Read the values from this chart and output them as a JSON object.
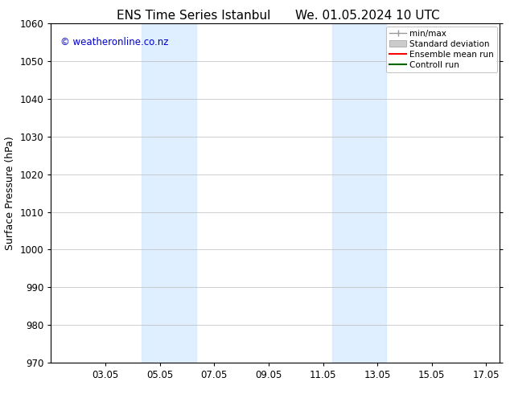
{
  "title_left": "ENS Time Series Istanbul",
  "title_right": "We. 01.05.2024 10 UTC",
  "ylabel": "Surface Pressure (hPa)",
  "ylim": [
    970,
    1060
  ],
  "yticks": [
    970,
    980,
    990,
    1000,
    1010,
    1020,
    1030,
    1040,
    1050,
    1060
  ],
  "xlim": [
    0,
    16.5
  ],
  "xtick_labels": [
    "03.05",
    "05.05",
    "07.05",
    "09.05",
    "11.05",
    "13.05",
    "15.05",
    "17.05"
  ],
  "xtick_positions": [
    2,
    4,
    6,
    8,
    10,
    12,
    14,
    16
  ],
  "shaded_bands": [
    {
      "x_start": 3.33,
      "x_end": 5.33,
      "color": "#cce5ff",
      "alpha": 0.6
    },
    {
      "x_start": 10.33,
      "x_end": 12.33,
      "color": "#cce5ff",
      "alpha": 0.6
    }
  ],
  "watermark_text": "© weatheronline.co.nz",
  "watermark_color": "#0000cc",
  "bg_color": "#ffffff",
  "grid_color": "#bbbbbb",
  "plot_bg_color": "#ffffff",
  "title_fontsize": 11,
  "tick_fontsize": 8.5,
  "ylabel_fontsize": 9
}
